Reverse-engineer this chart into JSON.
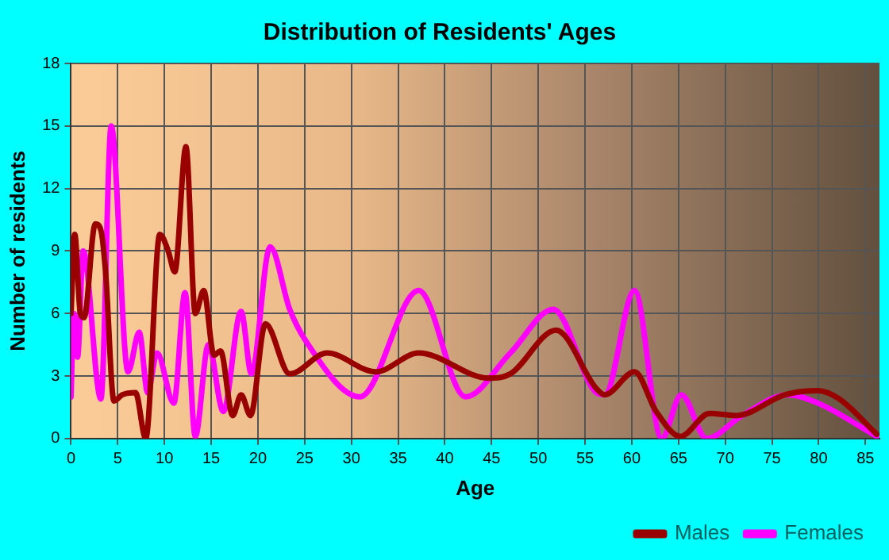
{
  "chart_data": {
    "type": "line",
    "title": "Distribution of Residents' Ages",
    "xlabel": "Age",
    "ylabel": "Number of residents",
    "xlim": [
      0,
      86.5
    ],
    "xticks": [
      0,
      5,
      10,
      15,
      20,
      25,
      30,
      35,
      40,
      45,
      50,
      55,
      60,
      65,
      70,
      75,
      80,
      85
    ],
    "ylim": [
      0,
      18
    ],
    "yticks": [
      0,
      3,
      6,
      9,
      12,
      15,
      18
    ],
    "grid": true,
    "legend": "bottom right",
    "marker": "none",
    "line_style": "solid",
    "series": [
      {
        "name": "Males",
        "color": "#990000",
        "x": [
          0,
          0.4,
          1,
          1.4,
          2.6,
          3.2,
          3.7,
          4.6,
          5.5,
          6.9,
          8,
          9.5,
          10.4,
          11.1,
          12.3,
          13.3,
          14.2,
          15.3,
          16,
          17.3,
          18.2,
          19.2,
          20.8,
          23.4,
          27.4,
          32.6,
          37.2,
          44.7,
          47,
          51.9,
          56.2,
          57.1,
          60.3,
          62.6,
          65.2,
          68.3,
          71.2,
          76.4,
          79.9,
          82.2,
          86.2
        ],
        "values": [
          6,
          9.8,
          6,
          5.8,
          10.3,
          10,
          8,
          1.8,
          2.1,
          2.2,
          0,
          9.8,
          9,
          8,
          14,
          6,
          7.1,
          4,
          4.2,
          1.1,
          2.1,
          1.1,
          5.5,
          3.1,
          4.1,
          3.2,
          4.1,
          2.9,
          3.1,
          5.2,
          2.4,
          2.1,
          3.2,
          1.3,
          0.1,
          1.2,
          1.1,
          2.1,
          2.3,
          1.9,
          0.2
        ]
      },
      {
        "name": "Females",
        "color": "#ff00ff",
        "x": [
          0,
          0.3,
          0.7,
          1.3,
          3.2,
          4.3,
          6.1,
          7.3,
          8.2,
          9.2,
          11,
          12.2,
          13.3,
          14.7,
          16.3,
          18.2,
          19.3,
          21.3,
          23.4,
          25.1,
          30.9,
          37.2,
          42.2,
          47,
          51.6,
          56.2,
          57.1,
          60.3,
          63.2,
          65.3,
          68,
          71.8,
          76.7,
          79.9,
          86.2
        ],
        "values": [
          2,
          6,
          3.9,
          9,
          1.9,
          15,
          3.2,
          5.1,
          2.2,
          4.1,
          1.7,
          7,
          0.1,
          4.5,
          1.3,
          6.1,
          3.1,
          9.2,
          6.2,
          4.7,
          2,
          7.1,
          2,
          4.1,
          6.2,
          2.2,
          2.1,
          7.1,
          0,
          2.1,
          0,
          1.1,
          2.1,
          1.7,
          0.1
        ]
      }
    ]
  }
}
